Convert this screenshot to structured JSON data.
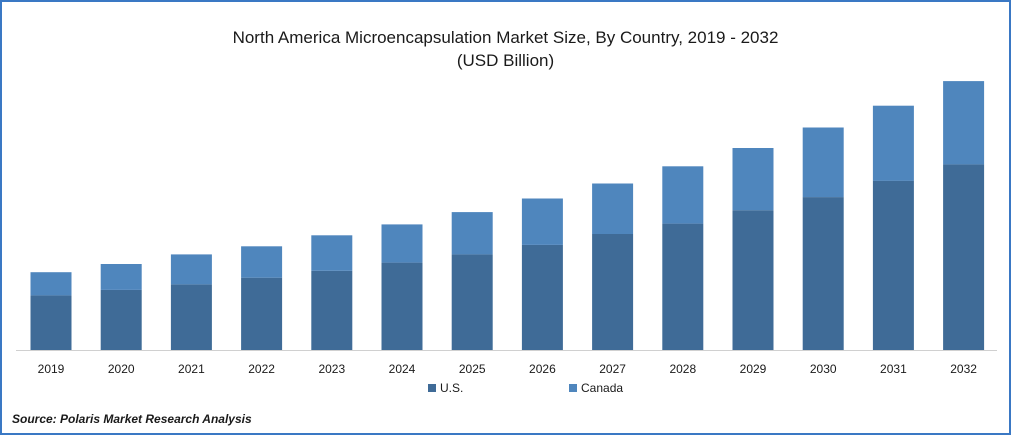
{
  "chart_data": {
    "type": "bar",
    "stacked": true,
    "title": "North America Microencapsulation Market Size, By Country, 2019 - 2032",
    "subtitle": "(USD Billion)",
    "xlabel": "",
    "ylabel": "",
    "categories": [
      "2019",
      "2020",
      "2021",
      "2022",
      "2023",
      "2024",
      "2025",
      "2026",
      "2027",
      "2028",
      "2029",
      "2030",
      "2031",
      "2032"
    ],
    "series": [
      {
        "name": "U.S.",
        "color": "#3f6b97",
        "values": [
          2.0,
          2.2,
          2.4,
          2.65,
          2.9,
          3.2,
          3.5,
          3.85,
          4.25,
          4.63,
          5.12,
          5.6,
          6.2,
          6.8
        ]
      },
      {
        "name": "Canada",
        "color": "#4f86bd",
        "values": [
          0.85,
          0.95,
          1.1,
          1.15,
          1.3,
          1.4,
          1.55,
          1.7,
          1.85,
          2.1,
          2.28,
          2.55,
          2.75,
          3.05
        ]
      }
    ],
    "ylim": [
      0,
      10
    ],
    "grid": false,
    "legend_position": "bottom-center"
  },
  "source": "Source: Polaris  Market Research Analysis"
}
